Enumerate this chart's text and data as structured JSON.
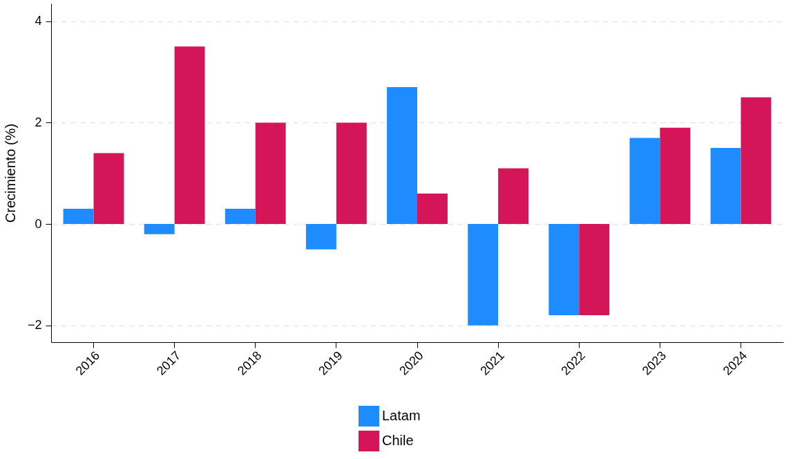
{
  "chart_data": {
    "type": "bar",
    "ylabel": "Crecimiento (%)",
    "categories": [
      "2016",
      "2017",
      "2018",
      "2019",
      "2020",
      "2021",
      "2022",
      "2023",
      "2024"
    ],
    "series": [
      {
        "name": "Latam",
        "color": "#1e8cff",
        "values": [
          0.3,
          -0.2,
          0.3,
          -0.5,
          2.7,
          -2.0,
          -1.8,
          1.7,
          1.5
        ]
      },
      {
        "name": "Chile",
        "color": "#d41659",
        "values": [
          1.4,
          3.5,
          2.0,
          2.0,
          0.6,
          1.1,
          -1.8,
          1.9,
          2.5
        ]
      }
    ],
    "ylim": [
      -2.33,
      4.35
    ],
    "yticks": [
      -2,
      0,
      2,
      4
    ],
    "grid": "y",
    "legend": "bottom"
  }
}
